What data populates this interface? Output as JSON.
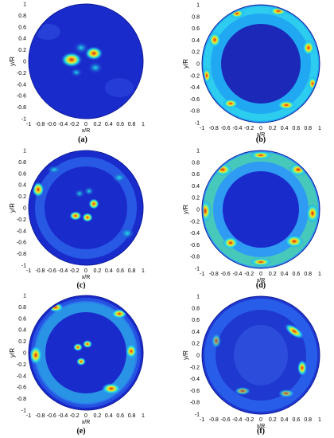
{
  "axes": {
    "xlabel": "x/R",
    "ylabel": "y/R",
    "xticks": [
      "-1",
      "-0.8",
      "-0.6",
      "-0.4",
      "-0.2",
      "0",
      "0.2",
      "0.4",
      "0.6",
      "0.8",
      "1"
    ],
    "yticks": [
      "1",
      "0.8",
      "0.6",
      "0.4",
      "0.2",
      "0",
      "-0.2",
      "-0.4",
      "-0.6",
      "-0.8",
      "-1"
    ]
  },
  "panels": [
    {
      "id": "a",
      "label": "(a)",
      "pattern": "center"
    },
    {
      "id": "b",
      "label": "(b)",
      "pattern": "outer-ring"
    },
    {
      "id": "c",
      "label": "(c)",
      "pattern": "center-and-ring"
    },
    {
      "id": "d",
      "label": "(d)",
      "pattern": "strong-outer-ring"
    },
    {
      "id": "e",
      "label": "(e)",
      "pattern": "center-and-inner-ring"
    },
    {
      "id": "f",
      "label": "(f)",
      "pattern": "faint-ring-right-hotspot"
    }
  ],
  "colors": {
    "background_field": "#1a2bcc",
    "outer_disk": "#0b1aa8",
    "cool": "#2f7bff",
    "mid": "#21e3e6",
    "warm": "#f8e71c",
    "hot": "#e2251f"
  }
}
